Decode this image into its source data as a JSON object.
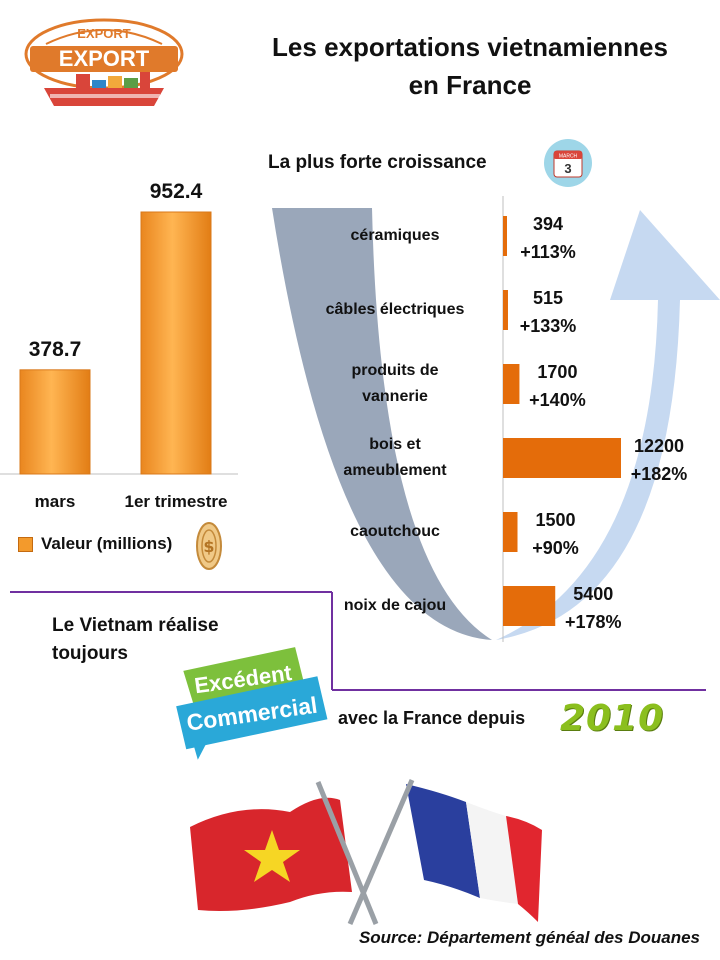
{
  "title_line1": "Les exportations vietnamiennes",
  "title_line2": "en France",
  "logo": {
    "top_text": "EXPORT",
    "main_text": "EXPORT"
  },
  "subtitle": "La plus forte croissance",
  "calendar": {
    "month": "MARCH",
    "day": "3"
  },
  "colors": {
    "bar_gradient_light": "#ffb552",
    "bar_gradient_dark": "#e9861f",
    "product_bar": "#e46c0a",
    "arrow_grey": "#8f9db3",
    "arrow_blue": "#c6d9f1",
    "divider_purple": "#7030a0",
    "year_green": "#8bbf1e"
  },
  "chart_data": [
    {
      "type": "bar",
      "categories": [
        "mars",
        "1er trimestre"
      ],
      "series": [
        {
          "name": "Valeur (millions)",
          "values": [
            378.7,
            952.4
          ]
        }
      ],
      "value_labels": [
        "378.7",
        "952.4"
      ],
      "ylim": [
        0,
        1000
      ],
      "legend": "bottom-left"
    },
    {
      "type": "bar",
      "orientation": "horizontal",
      "categories": [
        "céramiques",
        "câbles  électriques",
        "produits de vannerie",
        "bois et ameublement",
        "caoutchouc",
        "noix de cajou"
      ],
      "label_lines": [
        [
          "céramiques"
        ],
        [
          "câbles  électriques"
        ],
        [
          "produits de",
          "vannerie"
        ],
        [
          "bois et",
          "ameublement"
        ],
        [
          "caoutchouc"
        ],
        [
          "noix de cajou"
        ]
      ],
      "values": [
        394,
        515,
        1700,
        12200,
        1500,
        5400
      ],
      "value_labels": [
        "394",
        "515",
        "1700",
        "12200",
        "1500",
        "5400"
      ],
      "growth": [
        "+113%",
        "+133%",
        "+140%",
        "+182%",
        "+90%",
        "+178%"
      ],
      "xlim": [
        0,
        13000
      ]
    }
  ],
  "statement": {
    "line1": "Le Vietnam réalise",
    "line2": "toujours",
    "badge_line1": "Excédent",
    "badge_line2": "Commercial",
    "tail": "avec la France depuis",
    "year": "2010"
  },
  "source": "Source: Département  généal des Douanes"
}
